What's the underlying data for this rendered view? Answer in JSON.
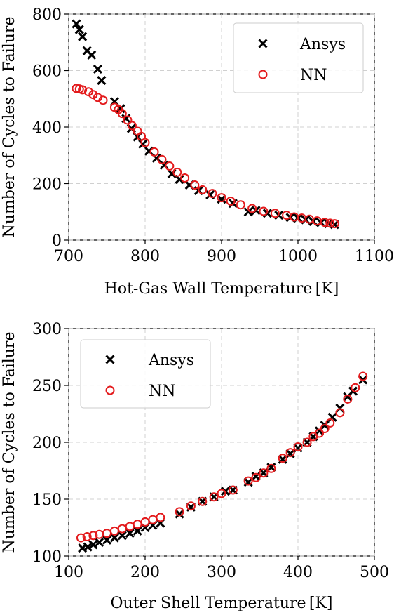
{
  "chart_data": [
    {
      "type": "scatter",
      "xlabel": "Hot-Gas Wall Temperature [K]",
      "ylabel": "Number of Cycles to Failure",
      "xlim": [
        700,
        1100
      ],
      "ylim": [
        0,
        800
      ],
      "xticks": [
        "700",
        "800",
        "900",
        "1000",
        "1100"
      ],
      "yticks": [
        "0",
        "200",
        "400",
        "600",
        "800"
      ],
      "grid": true,
      "legend_position": "top-right",
      "series": [
        {
          "name": "Ansys",
          "marker": "x",
          "color": "#000000",
          "points": [
            [
              710,
              765
            ],
            [
              714,
              745
            ],
            [
              718,
              720
            ],
            [
              724,
              670
            ],
            [
              730,
              655
            ],
            [
              738,
              605
            ],
            [
              743,
              565
            ],
            [
              760,
              490
            ],
            [
              768,
              465
            ],
            [
              775,
              430
            ],
            [
              782,
              395
            ],
            [
              790,
              365
            ],
            [
              797,
              340
            ],
            [
              805,
              315
            ],
            [
              815,
              290
            ],
            [
              825,
              265
            ],
            [
              835,
              235
            ],
            [
              845,
              215
            ],
            [
              858,
              195
            ],
            [
              870,
              175
            ],
            [
              885,
              160
            ],
            [
              900,
              145
            ],
            [
              915,
              130
            ],
            [
              935,
              100
            ],
            [
              945,
              105
            ],
            [
              960,
              95
            ],
            [
              975,
              88
            ],
            [
              990,
              80
            ],
            [
              1000,
              78
            ],
            [
              1010,
              72
            ],
            [
              1020,
              66
            ],
            [
              1030,
              62
            ],
            [
              1040,
              58
            ],
            [
              1048,
              55
            ]
          ]
        },
        {
          "name": "NN",
          "marker": "o",
          "color": "#e31a1c",
          "points": [
            [
              710,
              537
            ],
            [
              714,
              535
            ],
            [
              718,
              532
            ],
            [
              726,
              525
            ],
            [
              732,
              515
            ],
            [
              738,
              505
            ],
            [
              745,
              495
            ],
            [
              760,
              470
            ],
            [
              765,
              462
            ],
            [
              770,
              448
            ],
            [
              777,
              425
            ],
            [
              783,
              405
            ],
            [
              790,
              385
            ],
            [
              795,
              367
            ],
            [
              800,
              345
            ],
            [
              812,
              312
            ],
            [
              822,
              285
            ],
            [
              832,
              262
            ],
            [
              842,
              240
            ],
            [
              852,
              220
            ],
            [
              865,
              195
            ],
            [
              875,
              178
            ],
            [
              888,
              165
            ],
            [
              900,
              150
            ],
            [
              912,
              138
            ],
            [
              925,
              125
            ],
            [
              940,
              112
            ],
            [
              955,
              102
            ],
            [
              970,
              95
            ],
            [
              985,
              88
            ],
            [
              995,
              82
            ],
            [
              1005,
              78
            ],
            [
              1015,
              74
            ],
            [
              1025,
              68
            ],
            [
              1035,
              63
            ],
            [
              1042,
              60
            ],
            [
              1048,
              58
            ]
          ]
        }
      ]
    },
    {
      "type": "scatter",
      "xlabel": "Outer Shell Temperature [K]",
      "ylabel": "Number of Cycles to Failure",
      "xlim": [
        100,
        500
      ],
      "ylim": [
        100,
        300
      ],
      "xticks": [
        "100",
        "200",
        "300",
        "400",
        "500"
      ],
      "yticks": [
        "100",
        "150",
        "200",
        "250",
        "300"
      ],
      "grid": true,
      "legend_position": "top-left",
      "series": [
        {
          "name": "Ansys",
          "marker": "x",
          "color": "#000000",
          "points": [
            [
              118,
              107
            ],
            [
              125,
              108
            ],
            [
              132,
              110
            ],
            [
              140,
              112
            ],
            [
              150,
              114
            ],
            [
              160,
              116
            ],
            [
              170,
              118
            ],
            [
              180,
              120
            ],
            [
              190,
              122
            ],
            [
              200,
              125
            ],
            [
              210,
              127
            ],
            [
              220,
              129
            ],
            [
              245,
              137
            ],
            [
              260,
              143
            ],
            [
              275,
              148
            ],
            [
              290,
              152
            ],
            [
              305,
              157
            ],
            [
              315,
              158
            ],
            [
              335,
              165
            ],
            [
              345,
              170
            ],
            [
              355,
              173
            ],
            [
              365,
              178
            ],
            [
              380,
              185
            ],
            [
              390,
              190
            ],
            [
              400,
              195
            ],
            [
              412,
              200
            ],
            [
              420,
              205
            ],
            [
              428,
              210
            ],
            [
              435,
              215
            ],
            [
              445,
              222
            ],
            [
              455,
              230
            ],
            [
              465,
              240
            ],
            [
              472,
              245
            ],
            [
              485,
              255
            ]
          ]
        },
        {
          "name": "NN",
          "marker": "o",
          "color": "#e31a1c",
          "points": [
            [
              116,
              116
            ],
            [
              124,
              117
            ],
            [
              132,
              118
            ],
            [
              140,
              119
            ],
            [
              150,
              120
            ],
            [
              160,
              122
            ],
            [
              170,
              124
            ],
            [
              180,
              126
            ],
            [
              190,
              128
            ],
            [
              200,
              130
            ],
            [
              210,
              132
            ],
            [
              220,
              134
            ],
            [
              245,
              139
            ],
            [
              260,
              144
            ],
            [
              275,
              148
            ],
            [
              290,
              152
            ],
            [
              300,
              155
            ],
            [
              315,
              158
            ],
            [
              335,
              166
            ],
            [
              345,
              169
            ],
            [
              355,
              173
            ],
            [
              365,
              177
            ],
            [
              380,
              186
            ],
            [
              390,
              191
            ],
            [
              400,
              196
            ],
            [
              412,
              200
            ],
            [
              420,
              205
            ],
            [
              428,
              208
            ],
            [
              435,
              212
            ],
            [
              442,
              217
            ],
            [
              455,
              226
            ],
            [
              465,
              238
            ],
            [
              475,
              248
            ],
            [
              485,
              258
            ]
          ]
        }
      ]
    }
  ]
}
